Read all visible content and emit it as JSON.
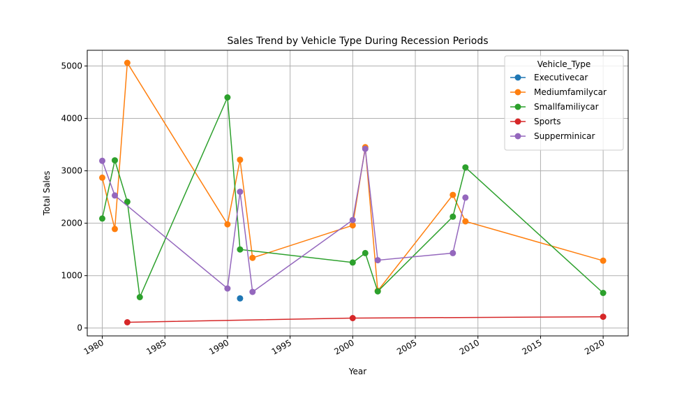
{
  "chart_data": {
    "type": "line",
    "title": "Sales Trend by Vehicle Type During Recession Periods",
    "xlabel": "Year",
    "ylabel": "Total Sales",
    "xlim": [
      1978.8,
      2022
    ],
    "ylim": [
      -150,
      5300
    ],
    "x_ticks": [
      1980,
      1985,
      1990,
      1995,
      2000,
      2005,
      2010,
      2015,
      2020
    ],
    "y_ticks": [
      0,
      1000,
      2000,
      3000,
      4000,
      5000
    ],
    "grid": true,
    "legend": {
      "title": "Vehicle_Type",
      "position": "top-right"
    },
    "series": [
      {
        "name": "Executivecar",
        "color": "#1f77b4",
        "points": [
          [
            1991,
            565
          ]
        ]
      },
      {
        "name": "Mediumfamilycar",
        "color": "#ff7f0e",
        "points": [
          [
            1980,
            2870
          ],
          [
            1981,
            1890
          ],
          [
            1982,
            5060
          ],
          [
            1990,
            1980
          ],
          [
            1991,
            3210
          ],
          [
            1992,
            1340
          ],
          [
            2000,
            1960
          ],
          [
            2001,
            3450
          ],
          [
            2002,
            710
          ],
          [
            2008,
            2540
          ],
          [
            2009,
            2035
          ],
          [
            2020,
            1285
          ]
        ]
      },
      {
        "name": "Smallfamiliycar",
        "color": "#2ca02c",
        "points": [
          [
            1980,
            2090
          ],
          [
            1981,
            3200
          ],
          [
            1982,
            2410
          ],
          [
            1983,
            590
          ],
          [
            1990,
            4400
          ],
          [
            1991,
            1500
          ],
          [
            2000,
            1250
          ],
          [
            2001,
            1430
          ],
          [
            2002,
            700
          ],
          [
            2008,
            2125
          ],
          [
            2009,
            3065
          ],
          [
            2020,
            670
          ]
        ]
      },
      {
        "name": "Sports",
        "color": "#d62728",
        "points": [
          [
            1982,
            110
          ],
          [
            2000,
            190
          ],
          [
            2020,
            215
          ]
        ]
      },
      {
        "name": "Supperminicar",
        "color": "#9467bd",
        "points": [
          [
            1980,
            3190
          ],
          [
            1981,
            2530
          ],
          [
            1990,
            755
          ],
          [
            1991,
            2600
          ],
          [
            1992,
            690
          ],
          [
            2000,
            2060
          ],
          [
            2001,
            3420
          ],
          [
            2002,
            1295
          ],
          [
            2008,
            1430
          ],
          [
            2009,
            2490
          ]
        ]
      }
    ]
  }
}
